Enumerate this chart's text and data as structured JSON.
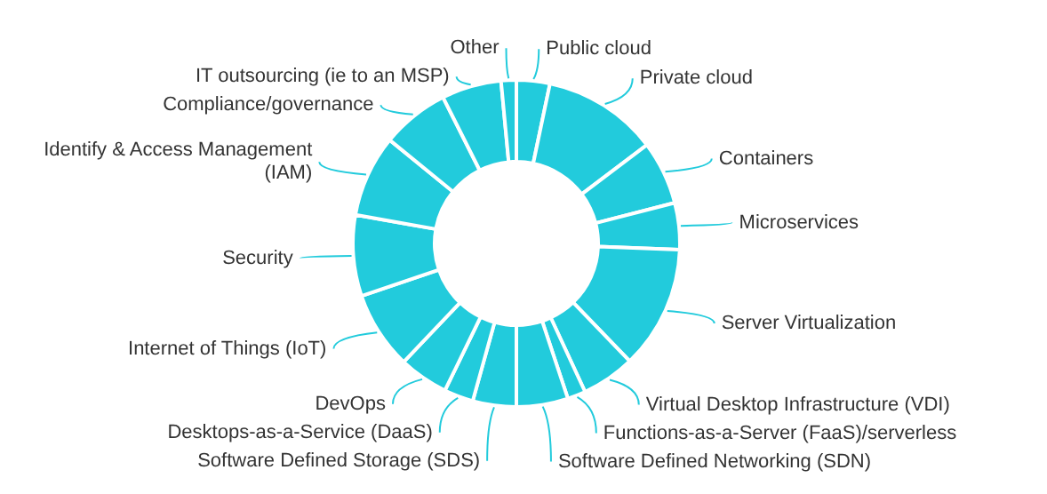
{
  "chart_data": {
    "type": "donut",
    "categories": [
      "Public cloud",
      "Private cloud",
      "Containers",
      "Microservices",
      "Server Virtualization",
      "Virtual Desktop Infrastructure (VDI)",
      "Functions-as-a-Server (FaaS)/serverless",
      "Software Defined Networking (SDN)",
      "Software Defined Storage (SDS)",
      "Desktops-as-a-Service (DaaS)",
      "DevOps",
      "Internet of Things (IoT)",
      "Security",
      "Identify & Access Management (IAM)",
      "Compliance/governance",
      "IT outsourcing (ie to an MSP)",
      "Other"
    ],
    "values": [
      3.3,
      11.4,
      6.3,
      4.6,
      12.2,
      5.3,
      1.8,
      5.1,
      4.3,
      2.9,
      4.9,
      7.7,
      8.0,
      8.1,
      6.7,
      5.9,
      1.5
    ],
    "colors": [
      "#22cbdc",
      "#22cbdc",
      "#22cbdc",
      "#22cbdc",
      "#22cbdc",
      "#22cbdc",
      "#22cbdc",
      "#22cbdc",
      "#22cbdc",
      "#22cbdc",
      "#22cbdc",
      "#22cbdc",
      "#22cbdc",
      "#22cbdc",
      "#22cbdc",
      "#22cbdc",
      "#22cbdc"
    ],
    "legend": false
  }
}
